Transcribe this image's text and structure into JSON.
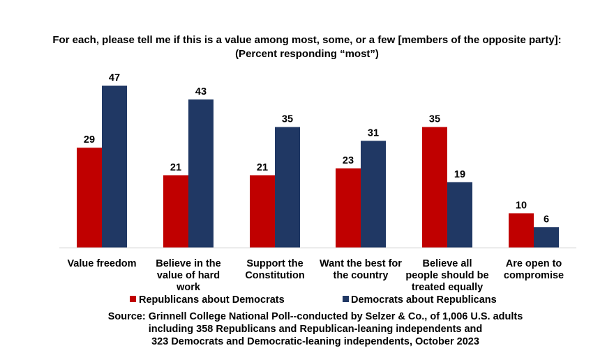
{
  "chart_data": {
    "type": "bar",
    "title": "For each, please tell me if this is a value among most, some, or a few [members of the opposite party]:",
    "subtitle": "(Percent responding “most”)",
    "categories": [
      [
        "Value freedom"
      ],
      [
        "Believe in the",
        "value of hard",
        "work"
      ],
      [
        "Support the",
        "Constitution"
      ],
      [
        "Want the best for",
        "the country"
      ],
      [
        "Believe all",
        "people should be",
        "treated equally"
      ],
      [
        "Are open to",
        "compromise"
      ]
    ],
    "series": [
      {
        "name": "Republicans about Democrats",
        "color": "#C00000",
        "values": [
          29,
          21,
          21,
          23,
          35,
          10
        ]
      },
      {
        "name": "Democrats about Republicans",
        "color": "#203864",
        "values": [
          47,
          43,
          35,
          31,
          19,
          6
        ]
      }
    ],
    "ylim": [
      0,
      47
    ],
    "grid": false,
    "data_labels": true,
    "legend_position": "bottom",
    "source": [
      "Source: Grinnell College National Poll--conducted by Selzer & Co., of 1,006 U.S. adults",
      "including 358 Republicans and Republican-leaning independents and",
      "323 Democrats and Democratic-leaning independents, October 2023"
    ]
  }
}
